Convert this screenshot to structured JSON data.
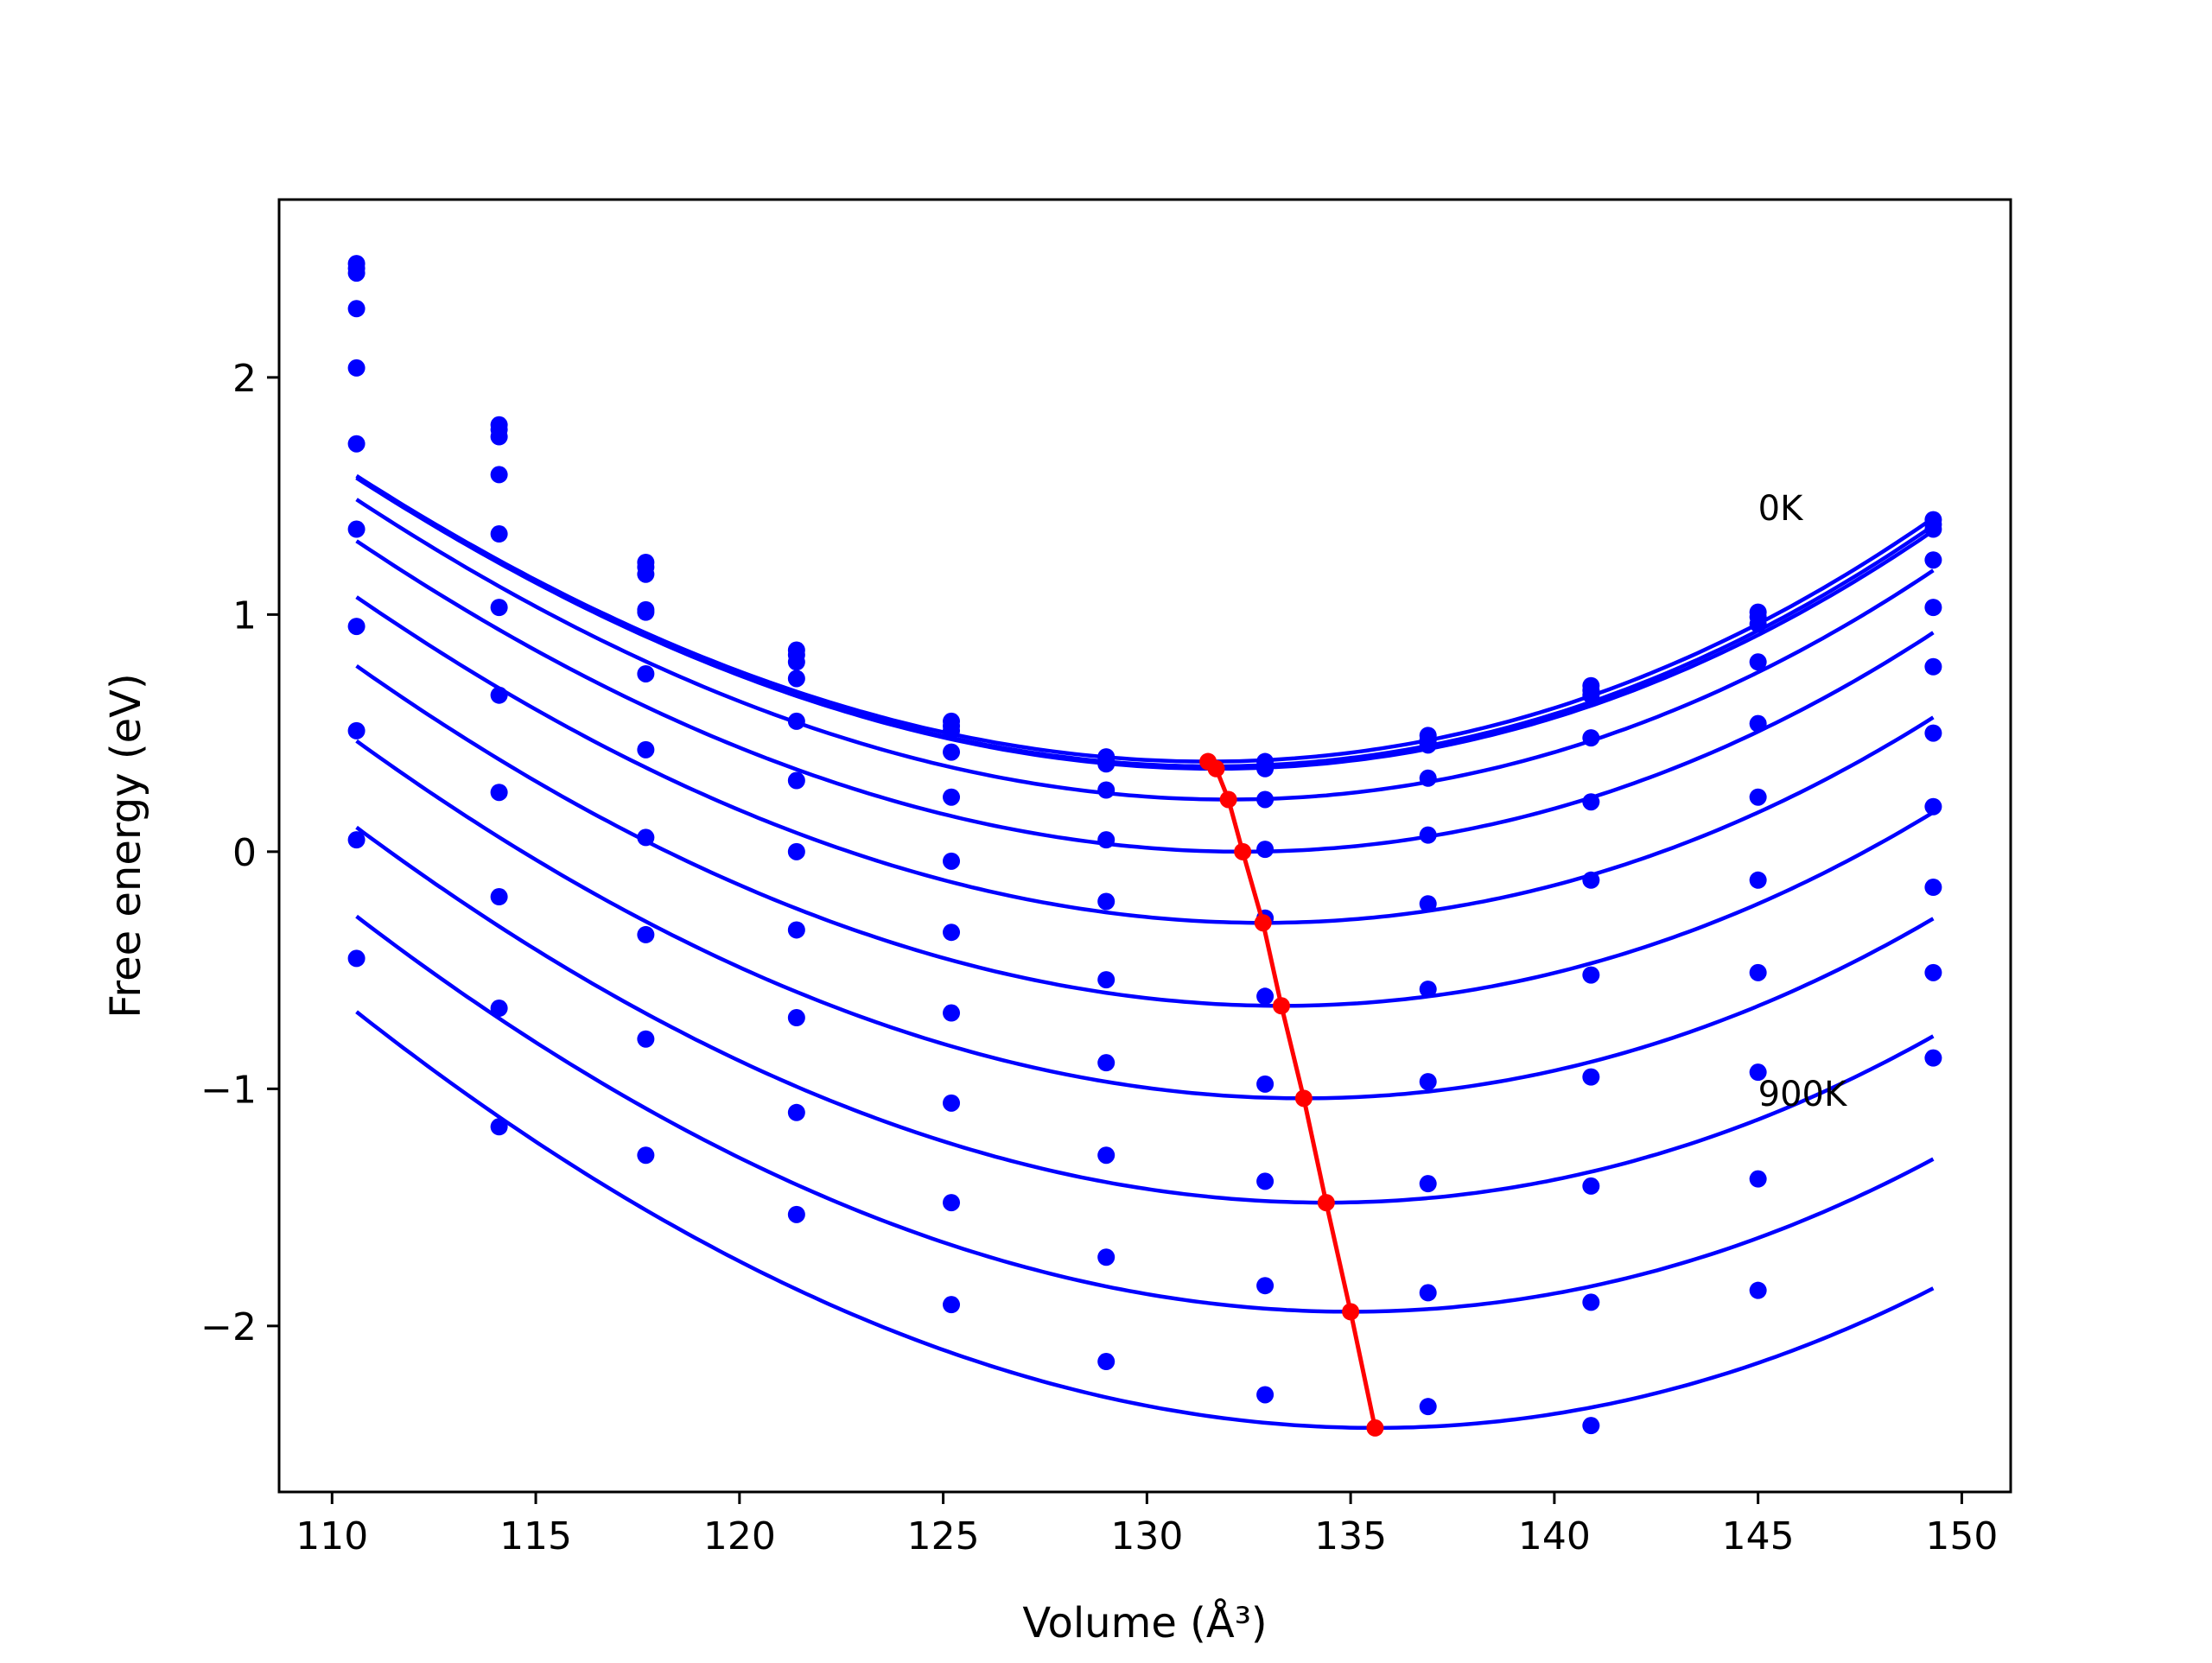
{
  "chart_data": {
    "type": "scatter",
    "title": "",
    "xlabel": "Volume (Å³)",
    "ylabel": "Free energy (eV)",
    "xlim": [
      108.7,
      151.2
    ],
    "ylim": [
      -2.7,
      2.75
    ],
    "xticks": [
      110,
      115,
      120,
      125,
      130,
      135,
      140,
      145,
      150
    ],
    "yticks": [
      -2,
      -1,
      0,
      1,
      2
    ],
    "grid": false,
    "legend": "none",
    "annotations": [
      {
        "text": "0K",
        "x": 145.0,
        "y": 1.45
      },
      {
        "text": "900K",
        "x": 145.0,
        "y": -1.02
      }
    ],
    "colors": {
      "fit": "#0000ff",
      "points": "#0000ff",
      "minimum": "#ff0000"
    },
    "x": [
      110.6,
      114.1,
      117.7,
      121.4,
      125.2,
      129.0,
      132.9,
      136.9,
      140.9,
      145.0,
      149.3
    ],
    "series": [
      {
        "points": [
          2.48,
          1.8,
          1.22,
          0.85,
          0.55,
          0.4,
          0.38,
          0.49,
          0.7,
          1.01,
          1.4
        ],
        "fit": {
          "v0": 131.5,
          "e0": 0.38,
          "a": 0.00302,
          "b": 1.25e-05
        }
      },
      {
        "points": [
          2.46,
          1.78,
          1.2,
          0.83,
          0.53,
          0.38,
          0.36,
          0.47,
          0.68,
          0.99,
          1.38
        ],
        "fit": {
          "v0": 131.6,
          "e0": 0.36,
          "a": 0.00302,
          "b": 1.25e-05
        }
      },
      {
        "points": [
          2.44,
          1.75,
          1.17,
          0.8,
          0.51,
          0.37,
          0.35,
          0.45,
          0.66,
          0.96,
          1.36
        ],
        "fit": {
          "v0": 131.7,
          "e0": 0.35,
          "a": 0.00302,
          "b": 1.25e-05
        }
      },
      {
        "points": [
          2.29,
          1.59,
          1.01,
          0.73,
          0.42,
          0.26,
          0.22,
          0.31,
          0.48,
          0.8,
          1.23
        ],
        "fit": {
          "v0": 132.0,
          "e0": 0.22,
          "a": 0.00302,
          "b": 1.2e-05
        }
      },
      {
        "points": [
          2.04,
          1.34,
          1.02,
          0.55,
          0.23,
          0.05,
          0.01,
          0.07,
          0.21,
          0.54,
          1.03
        ],
        "fit": {
          "v0": 132.35,
          "e0": 0.0,
          "a": 0.00302,
          "b": 1.15e-05
        }
      },
      {
        "points": [
          1.72,
          1.03,
          0.75,
          0.3,
          -0.04,
          -0.21,
          -0.28,
          -0.22,
          -0.12,
          0.23,
          0.78
        ],
        "fit": {
          "v0": 132.85,
          "e0": -0.3,
          "a": 0.00302,
          "b": 1.1e-05
        }
      },
      {
        "points": [
          1.36,
          0.66,
          0.43,
          0.0,
          -0.34,
          -0.54,
          -0.61,
          -0.58,
          -0.52,
          -0.12,
          0.5
        ],
        "fit": {
          "v0": 133.3,
          "e0": -0.65,
          "a": 0.00302,
          "b": 1.05e-05
        }
      },
      {
        "points": [
          0.95,
          0.25,
          0.06,
          -0.33,
          -0.68,
          -0.89,
          -0.98,
          -0.97,
          -0.95,
          -0.51,
          0.19
        ],
        "fit": {
          "v0": 133.85,
          "e0": -1.04,
          "a": 0.00302,
          "b": 1e-05
        }
      },
      {
        "points": [
          0.51,
          -0.19,
          -0.35,
          -0.7,
          -1.06,
          -1.28,
          -1.39,
          -1.4,
          -1.41,
          -0.93,
          -0.15
        ],
        "fit": {
          "v0": 134.4,
          "e0": -1.48,
          "a": 0.00302,
          "b": 9.5e-06
        }
      },
      {
        "points": [
          0.05,
          -0.66,
          -0.79,
          -1.1,
          -1.48,
          -1.71,
          -1.83,
          -1.86,
          -1.9,
          -1.38,
          -0.51
        ],
        "fit": {
          "v0": 135.0,
          "e0": -1.94,
          "a": 0.00302,
          "b": 9e-06
        }
      },
      {
        "points": [
          -0.45,
          -1.16,
          -1.28,
          -1.53,
          -1.91,
          -2.15,
          -2.29,
          -2.34,
          -2.42,
          -1.85,
          -0.87
        ],
        "fit": {
          "v0": 135.6,
          "e0": -2.43,
          "a": 0.00302,
          "b": 8.5e-06
        }
      }
    ],
    "minima": {
      "x": [
        131.5,
        131.7,
        132.0,
        132.35,
        132.85,
        133.3,
        133.85,
        134.4,
        135.0,
        135.6
      ],
      "y": [
        0.38,
        0.35,
        0.22,
        0.0,
        -0.3,
        -0.65,
        -1.04,
        -1.48,
        -1.94,
        -2.43
      ]
    }
  }
}
